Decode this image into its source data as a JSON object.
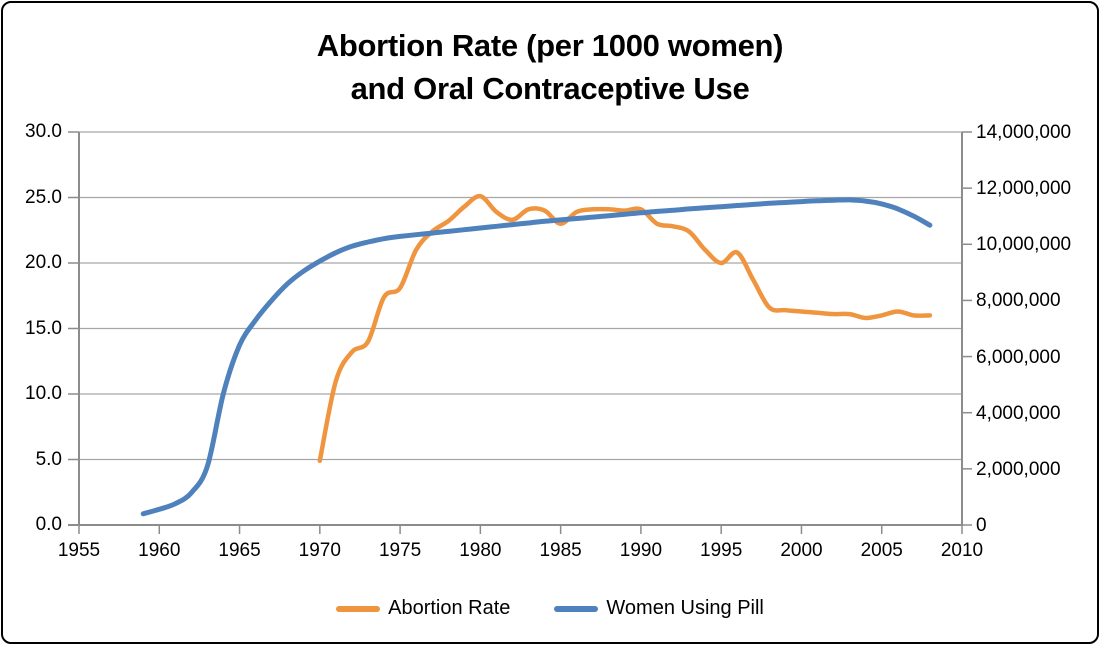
{
  "frame": {
    "border_color": "#000000",
    "background": "#ffffff"
  },
  "colors": {
    "gridline": "#a6a6a6",
    "axis": "#8c8c8c",
    "text": "#000000",
    "abortion_rate": "#f0953f",
    "women_using_pill": "#4f81bd"
  },
  "chart_data": {
    "type": "line",
    "title": "Abortion Rate (per 1000 women) and Oral Contraceptive Use",
    "title_lines": [
      "Abortion Rate (per 1000 women)",
      "and Oral Contraceptive Use"
    ],
    "grid": "horizontal-only",
    "legend_position": "bottom-center",
    "x_axis": {
      "min": 1955,
      "max": 2010,
      "tick_step": 5,
      "tick_labels": [
        "1955",
        "1960",
        "1965",
        "1970",
        "1975",
        "1980",
        "1985",
        "1990",
        "1995",
        "2000",
        "2005",
        "2010"
      ]
    },
    "y_axis_left": {
      "label_for_series": "Abortion Rate",
      "min": 0,
      "max": 30,
      "tick_step": 5,
      "tick_labels": [
        "0.0",
        "5.0",
        "10.0",
        "15.0",
        "20.0",
        "25.0",
        "30.0"
      ]
    },
    "y_axis_right": {
      "label_for_series": "Women Using Pill",
      "min": 0,
      "max": 14000000,
      "tick_step": 2000000,
      "tick_labels": [
        "0",
        "2,000,000",
        "4,000,000",
        "6,000,000",
        "8,000,000",
        "10,000,000",
        "12,000,000",
        "14,000,000"
      ]
    },
    "series": [
      {
        "name": "Abortion Rate",
        "axis": "left",
        "color": "#f0953f",
        "line_width": 4.5,
        "smooth": true,
        "years": [
          1970,
          1971,
          1972,
          1973,
          1974,
          1975,
          1976,
          1977,
          1978,
          1979,
          1980,
          1981,
          1982,
          1983,
          1984,
          1985,
          1986,
          1987,
          1988,
          1989,
          1990,
          1991,
          1992,
          1993,
          1994,
          1995,
          1996,
          1997,
          1998,
          1999,
          2000,
          2001,
          2002,
          2003,
          2004,
          2005,
          2006,
          2007,
          2008
        ],
        "values": [
          4.9,
          11.0,
          13.2,
          14.0,
          17.4,
          18.1,
          21.0,
          22.4,
          23.2,
          24.3,
          25.1,
          23.9,
          23.3,
          24.1,
          24.0,
          23.0,
          23.9,
          24.1,
          24.1,
          24.0,
          24.1,
          23.0,
          22.8,
          22.4,
          21.0,
          20.0,
          20.8,
          18.7,
          16.6,
          16.4,
          16.3,
          16.2,
          16.1,
          16.1,
          15.8,
          16.0,
          16.3,
          16.0,
          16.0
        ]
      },
      {
        "name": "Women Using Pill",
        "axis": "right",
        "color": "#4f81bd",
        "line_width": 5,
        "smooth": true,
        "years": [
          1959,
          1960,
          1961,
          1962,
          1963,
          1964,
          1965,
          1966,
          1967,
          1968,
          1969,
          1970,
          1971,
          1972,
          1973,
          1974,
          1975,
          1976,
          1977,
          1978,
          1979,
          1980,
          1981,
          1982,
          1983,
          1984,
          1985,
          1986,
          1987,
          1988,
          1989,
          1990,
          1991,
          1992,
          1993,
          1994,
          1995,
          1996,
          1997,
          1998,
          1999,
          2000,
          2001,
          2002,
          2003,
          2004,
          2005,
          2006,
          2007,
          2008
        ],
        "values": [
          400000,
          560000,
          760000,
          1150000,
          2100000,
          4700000,
          6400000,
          7300000,
          8000000,
          8600000,
          9050000,
          9400000,
          9700000,
          9930000,
          10080000,
          10200000,
          10280000,
          10340000,
          10400000,
          10460000,
          10520000,
          10580000,
          10640000,
          10700000,
          10760000,
          10820000,
          10870000,
          10920000,
          10970000,
          11020000,
          11070000,
          11120000,
          11170000,
          11210000,
          11260000,
          11300000,
          11340000,
          11380000,
          11420000,
          11460000,
          11490000,
          11520000,
          11550000,
          11570000,
          11580000,
          11540000,
          11440000,
          11260000,
          11000000,
          10680000
        ]
      }
    ],
    "legend": [
      {
        "label": "Abortion Rate",
        "color": "#f0953f"
      },
      {
        "label": "Women Using Pill",
        "color": "#4f81bd"
      }
    ]
  }
}
